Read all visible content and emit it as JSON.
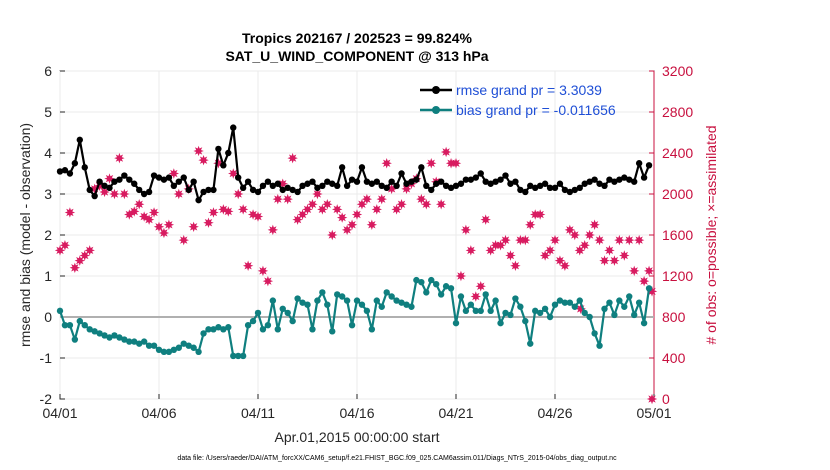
{
  "chart_data": {
    "type": "line",
    "title": "Tropics 202167 / 202523 = 99.824%",
    "subtitle": "SAT_U_WIND_COMPONENT @ 313 hPa",
    "xlabel": "Apr.01,2015 00:00:00 start",
    "ylabel": "rmse and bias (model - observation)",
    "y2label": "# of obs: o=possible; ×=assimilated",
    "xlim": [
      0,
      30
    ],
    "ylim": [
      -2,
      6
    ],
    "y2lim": [
      0,
      3200
    ],
    "x_ticks": [
      0,
      5,
      10,
      15,
      20,
      25,
      30
    ],
    "x_tick_labels": [
      "04/01",
      "04/06",
      "04/11",
      "04/16",
      "04/21",
      "04/26",
      "05/01"
    ],
    "y_ticks": [
      -2,
      -1,
      0,
      1,
      2,
      3,
      4,
      5,
      6
    ],
    "y_tick_labels": [
      "-2",
      "-1",
      "0",
      "1",
      "2",
      "3",
      "4",
      "5",
      "6"
    ],
    "y2_ticks": [
      0,
      400,
      800,
      1200,
      1600,
      2000,
      2400,
      2800,
      3200
    ],
    "y2_tick_labels": [
      "0",
      "400",
      "800",
      "1200",
      "1600",
      "2000",
      "2400",
      "2800",
      "3200"
    ],
    "series": [
      {
        "name": "rmse grand pr = 3.3039",
        "color": "#000000",
        "axis": "left",
        "x": [
          0.0,
          0.25,
          0.5,
          0.75,
          1.0,
          1.25,
          1.5,
          1.75,
          2.0,
          2.25,
          2.5,
          2.75,
          3.0,
          3.25,
          3.5,
          3.75,
          4.0,
          4.25,
          4.5,
          4.75,
          5.0,
          5.25,
          5.5,
          5.75,
          6.0,
          6.25,
          6.5,
          6.75,
          7.0,
          7.25,
          7.5,
          7.75,
          8.0,
          8.25,
          8.5,
          8.75,
          9.0,
          9.25,
          9.5,
          9.75,
          10.0,
          10.25,
          10.5,
          10.75,
          11.0,
          11.25,
          11.5,
          11.75,
          12.0,
          12.25,
          12.5,
          12.75,
          13.0,
          13.25,
          13.5,
          13.75,
          14.0,
          14.25,
          14.5,
          14.75,
          15.0,
          15.25,
          15.5,
          15.75,
          16.0,
          16.25,
          16.5,
          16.75,
          17.0,
          17.25,
          17.5,
          17.75,
          18.0,
          18.25,
          18.5,
          18.75,
          19.0,
          19.25,
          19.5,
          19.75,
          20.0,
          20.25,
          20.5,
          20.75,
          21.0,
          21.25,
          21.5,
          21.75,
          22.0,
          22.25,
          22.5,
          22.75,
          23.0,
          23.25,
          23.5,
          23.75,
          24.0,
          24.25,
          24.5,
          24.75,
          25.0,
          25.25,
          25.5,
          25.75,
          26.0,
          26.25,
          26.5,
          26.75,
          27.0,
          27.25,
          27.5,
          27.75,
          28.0,
          28.25,
          28.5,
          28.75,
          29.0,
          29.25,
          29.5,
          29.75
        ],
        "values": [
          3.55,
          3.58,
          3.5,
          3.75,
          4.32,
          3.65,
          3.1,
          2.95,
          3.3,
          3.2,
          3.15,
          3.3,
          3.35,
          3.45,
          3.35,
          3.25,
          3.1,
          3.0,
          3.05,
          3.45,
          3.4,
          3.35,
          3.4,
          3.2,
          3.3,
          3.4,
          3.1,
          3.3,
          2.85,
          3.05,
          3.1,
          3.1,
          4.1,
          3.7,
          4.0,
          4.62,
          3.4,
          3.15,
          3.3,
          3.1,
          3.05,
          3.2,
          3.3,
          3.2,
          3.25,
          3.1,
          3.15,
          3.1,
          3.05,
          3.2,
          3.25,
          3.3,
          3.15,
          3.2,
          3.3,
          3.25,
          3.2,
          3.65,
          3.2,
          3.35,
          3.3,
          3.65,
          3.3,
          3.25,
          3.3,
          3.2,
          3.15,
          3.3,
          3.2,
          3.5,
          3.25,
          3.3,
          3.35,
          3.65,
          3.2,
          3.1,
          3.25,
          3.3,
          3.2,
          3.15,
          3.2,
          3.25,
          3.35,
          3.35,
          3.4,
          3.5,
          3.3,
          3.25,
          3.3,
          3.35,
          3.45,
          3.25,
          3.3,
          3.1,
          3.05,
          3.2,
          3.15,
          3.2,
          3.25,
          3.15,
          3.15,
          3.25,
          3.1,
          3.05,
          3.1,
          3.15,
          3.25,
          3.3,
          3.35,
          3.25,
          3.2,
          3.35,
          3.3,
          3.35,
          3.4,
          3.35,
          3.3,
          3.75,
          3.4,
          3.7
        ]
      },
      {
        "name": "bias grand pr = -0.011656",
        "color": "#0f7f7f",
        "axis": "left",
        "x": [
          0.0,
          0.25,
          0.5,
          0.75,
          1.0,
          1.25,
          1.5,
          1.75,
          2.0,
          2.25,
          2.5,
          2.75,
          3.0,
          3.25,
          3.5,
          3.75,
          4.0,
          4.25,
          4.5,
          4.75,
          5.0,
          5.25,
          5.5,
          5.75,
          6.0,
          6.25,
          6.5,
          6.75,
          7.0,
          7.25,
          7.5,
          7.75,
          8.0,
          8.25,
          8.5,
          8.75,
          9.0,
          9.25,
          9.5,
          9.75,
          10.0,
          10.25,
          10.5,
          10.75,
          11.0,
          11.25,
          11.5,
          11.75,
          12.0,
          12.25,
          12.5,
          12.75,
          13.0,
          13.25,
          13.5,
          13.75,
          14.0,
          14.25,
          14.5,
          14.75,
          15.0,
          15.25,
          15.5,
          15.75,
          16.0,
          16.25,
          16.5,
          16.75,
          17.0,
          17.25,
          17.5,
          17.75,
          18.0,
          18.25,
          18.5,
          18.75,
          19.0,
          19.25,
          19.5,
          19.75,
          20.0,
          20.25,
          20.5,
          20.75,
          21.0,
          21.25,
          21.5,
          21.75,
          22.0,
          22.25,
          22.5,
          22.75,
          23.0,
          23.25,
          23.5,
          23.75,
          24.0,
          24.25,
          24.5,
          24.75,
          25.0,
          25.25,
          25.5,
          25.75,
          26.0,
          26.25,
          26.5,
          26.75,
          27.0,
          27.25,
          27.5,
          27.75,
          28.0,
          28.25,
          28.5,
          28.75,
          29.0,
          29.25,
          29.5,
          29.75
        ],
        "values": [
          0.15,
          -0.2,
          -0.2,
          -0.55,
          -0.1,
          -0.2,
          -0.3,
          -0.35,
          -0.4,
          -0.45,
          -0.5,
          -0.45,
          -0.5,
          -0.55,
          -0.6,
          -0.6,
          -0.65,
          -0.6,
          -0.7,
          -0.7,
          -0.8,
          -0.85,
          -0.85,
          -0.8,
          -0.75,
          -0.65,
          -0.7,
          -0.75,
          -0.85,
          -0.4,
          -0.3,
          -0.3,
          -0.25,
          -0.3,
          -0.25,
          -0.95,
          -0.95,
          -0.95,
          -0.2,
          -0.1,
          0.1,
          -0.3,
          -0.2,
          0.4,
          -0.3,
          0.2,
          0.1,
          -0.1,
          0.45,
          0.35,
          0.3,
          -0.3,
          0.4,
          0.6,
          0.3,
          -0.35,
          0.55,
          0.5,
          0.4,
          -0.2,
          0.4,
          0.3,
          0.15,
          -0.3,
          0.4,
          0.25,
          0.6,
          0.5,
          0.4,
          0.35,
          0.3,
          0.25,
          0.9,
          0.85,
          0.6,
          0.9,
          0.8,
          0.55,
          0.75,
          0.7,
          -0.15,
          0.5,
          0.15,
          0.3,
          0.15,
          0.15,
          0.55,
          0.15,
          0.4,
          -0.15,
          0.1,
          0.05,
          0.45,
          0.25,
          -0.1,
          -0.65,
          0.15,
          0.1,
          0.2,
          0.0,
          0.3,
          0.4,
          0.35,
          0.35,
          0.25,
          0.4,
          0.1,
          0.0,
          -0.4,
          -0.7,
          0.2,
          0.35,
          0.05,
          0.4,
          0.25,
          0.5,
          0.05,
          0.35,
          -0.15,
          0.7
        ]
      },
      {
        "name": "# of obs assimilated",
        "color": "#d81b60",
        "axis": "right",
        "x": [
          0.0,
          0.25,
          0.5,
          0.75,
          1.0,
          1.25,
          1.5,
          1.75,
          2.0,
          2.25,
          2.5,
          2.75,
          3.0,
          3.25,
          3.5,
          3.75,
          4.0,
          4.25,
          4.5,
          4.75,
          5.0,
          5.25,
          5.5,
          5.75,
          6.0,
          6.25,
          6.5,
          6.75,
          7.0,
          7.25,
          7.5,
          7.75,
          8.0,
          8.25,
          8.5,
          8.75,
          9.0,
          9.25,
          9.5,
          9.75,
          10.0,
          10.25,
          10.5,
          10.75,
          11.0,
          11.25,
          11.5,
          11.75,
          12.0,
          12.25,
          12.5,
          12.75,
          13.0,
          13.25,
          13.5,
          13.75,
          14.0,
          14.25,
          14.5,
          14.75,
          15.0,
          15.25,
          15.5,
          15.75,
          16.0,
          16.25,
          16.5,
          16.75,
          17.0,
          17.25,
          17.5,
          17.75,
          18.0,
          18.25,
          18.5,
          18.75,
          19.0,
          19.25,
          19.5,
          19.75,
          20.0,
          20.25,
          20.5,
          20.75,
          21.0,
          21.25,
          21.5,
          21.75,
          22.0,
          22.25,
          22.5,
          22.75,
          23.0,
          23.25,
          23.5,
          23.75,
          24.0,
          24.25,
          24.5,
          24.75,
          25.0,
          25.25,
          25.5,
          25.75,
          26.0,
          26.25,
          26.5,
          26.75,
          27.0,
          27.25,
          27.5,
          27.75,
          28.0,
          28.25,
          28.5,
          28.75,
          29.0,
          29.25,
          29.5,
          29.75
        ],
        "values": [
          1450,
          1500,
          1820,
          1280,
          1350,
          1400,
          1450,
          2050,
          2080,
          2020,
          2150,
          2000,
          2350,
          2000,
          1800,
          1830,
          1900,
          1780,
          1750,
          1820,
          1680,
          1620,
          1700,
          2200,
          2000,
          1550,
          2050,
          1680,
          2420,
          2330,
          1720,
          1820,
          2300,
          1850,
          1830,
          2200,
          2000,
          1850,
          1300,
          1800,
          1780,
          1250,
          1150,
          1650,
          1950,
          2100,
          1950,
          2350,
          1750,
          1800,
          1850,
          1900,
          2000,
          1850,
          1900,
          1600,
          1850,
          1770,
          1650,
          1700,
          1800,
          1900,
          1950,
          1700,
          1850,
          1950,
          2300,
          2050,
          1850,
          1900,
          2050,
          2100,
          2150,
          1950,
          1900,
          2300,
          2120,
          1900,
          2410,
          2300,
          2300,
          1200,
          1650,
          1450,
          1000,
          1100,
          1750,
          1450,
          1500,
          1500,
          1550,
          1400,
          1300,
          1550,
          1550,
          1700,
          1800,
          1800,
          1400,
          1450,
          1550,
          1350,
          1300,
          1650,
          1600,
          1450,
          1500,
          1600,
          1700,
          1550,
          1350,
          1450,
          1350,
          1550,
          1400,
          1550,
          1250,
          1550,
          1150,
          1250
        ]
      }
    ],
    "extra_points": [
      {
        "x": 26.3,
        "value": 880,
        "axis": "right",
        "color": "#d81b60"
      },
      {
        "x": 29.9,
        "value": 0,
        "axis": "right",
        "color": "#d81b60"
      },
      {
        "x": 29.9,
        "value": 1050,
        "axis": "right",
        "color": "#d81b60"
      }
    ],
    "reference_line": {
      "value": 0,
      "axis": "left",
      "color": "#b0b0b0"
    },
    "legend": {
      "position": "top-right",
      "entries": [
        "rmse grand pr = 3.3039",
        "bias grand pr = -0.011656"
      ]
    },
    "footer": "data file: /Users/raeder/DAI/ATM_forcXX/CAM6_setup/f.e21.FHIST_BGC.f09_025.CAM6assim.011/Diags_NTrS_2015-04/obs_diag_output.nc"
  }
}
